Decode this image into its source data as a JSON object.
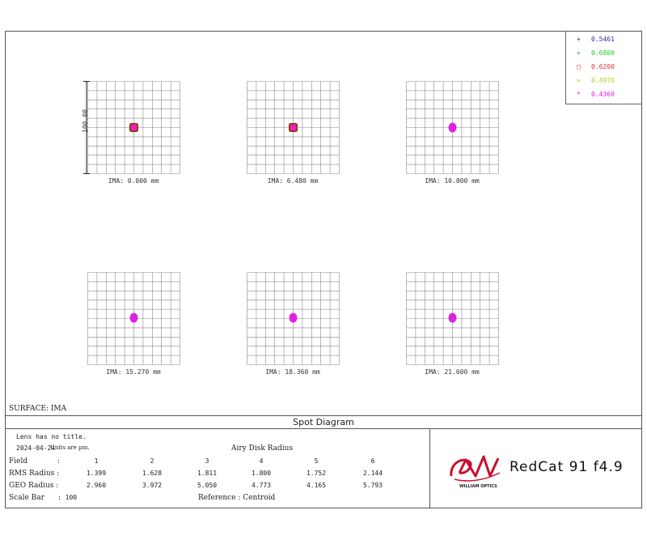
{
  "chart_data": {
    "type": "scatter",
    "title": "Spot Diagram",
    "surface": "SURFACE: IMA",
    "scale_bar": "100.00",
    "fields": [
      {
        "ima": "IMA: 0.000 mm",
        "spot": "square"
      },
      {
        "ima": "IMA: 6.480 mm",
        "spot": "square"
      },
      {
        "ima": "IMA: 10.800 mm",
        "spot": "round"
      },
      {
        "ima": "IMA: 15.270 mm",
        "spot": "round"
      },
      {
        "ima": "IMA: 18.360 mm",
        "spot": "round"
      },
      {
        "ima": "IMA: 21.600 mm",
        "spot": "round"
      }
    ],
    "legend": [
      {
        "value": "0.5461",
        "symbol": "+",
        "color": "#2b2bb0"
      },
      {
        "value": "0.6800",
        "symbol": "×",
        "color": "#29c829"
      },
      {
        "value": "0.6200",
        "symbol": "□",
        "color": "#e03030"
      },
      {
        "value": "0.4970",
        "symbol": "×",
        "color": "#c8c820"
      },
      {
        "value": "0.4360",
        "symbol": "*",
        "color": "#e020e0"
      }
    ]
  },
  "info": {
    "lens_title": "Lens has no title.",
    "date": "2024-04-24",
    "units": "Units are µm.",
    "airy": "Airy Disk Radius",
    "field_label": "Field",
    "colon": ":",
    "field_numbers": [
      "1",
      "2",
      "3",
      "4",
      "5",
      "6"
    ],
    "rms_label": "RMS Radius :",
    "rms_values": [
      "1.399",
      "1.628",
      "1.811",
      "1.800",
      "1.752",
      "2.144"
    ],
    "geo_label": "GEO Radius :",
    "geo_values": [
      "2.960",
      "3.972",
      "5.050",
      "4.773",
      "4.165",
      "5.793"
    ],
    "scale_label": "Scale Bar",
    "scale_value": ": 100",
    "reference": "Reference   :   Centroid"
  },
  "logo": {
    "brand_text": "WILLIAM OPTICS",
    "product": "RedCat 91  f4.9",
    "brand_color": "#c8102e"
  }
}
